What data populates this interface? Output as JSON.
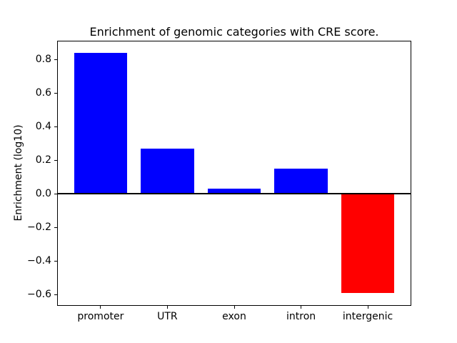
{
  "figure": {
    "background_color": "#ffffff",
    "text_color": "#000000"
  },
  "chart_data": {
    "type": "bar",
    "title": "Enrichment of genomic categories with CRE score.",
    "xlabel": "",
    "ylabel": "Enrichment (log10)",
    "categories": [
      "promoter",
      "UTR",
      "exon",
      "intron",
      "intergenic"
    ],
    "values": [
      0.84,
      0.27,
      0.03,
      0.15,
      -0.59
    ],
    "bar_colors": [
      "#0000ff",
      "#0000ff",
      "#0000ff",
      "#0000ff",
      "#ff0000"
    ],
    "positive_color": "#0000ff",
    "negative_color": "#ff0000",
    "bar_width": 0.8,
    "ylim": [
      -0.663,
      0.909
    ],
    "xlim": [
      -0.64,
      4.64
    ],
    "yticks": [
      -0.6,
      -0.4,
      -0.2,
      0.0,
      0.2,
      0.4,
      0.6,
      0.8
    ],
    "ytick_labels": [
      "−0.6",
      "−0.4",
      "−0.2",
      "0.0",
      "0.2",
      "0.4",
      "0.6",
      "0.8"
    ],
    "grid": false,
    "legend": "none",
    "zero_line": true,
    "spine_color": "#000000"
  }
}
